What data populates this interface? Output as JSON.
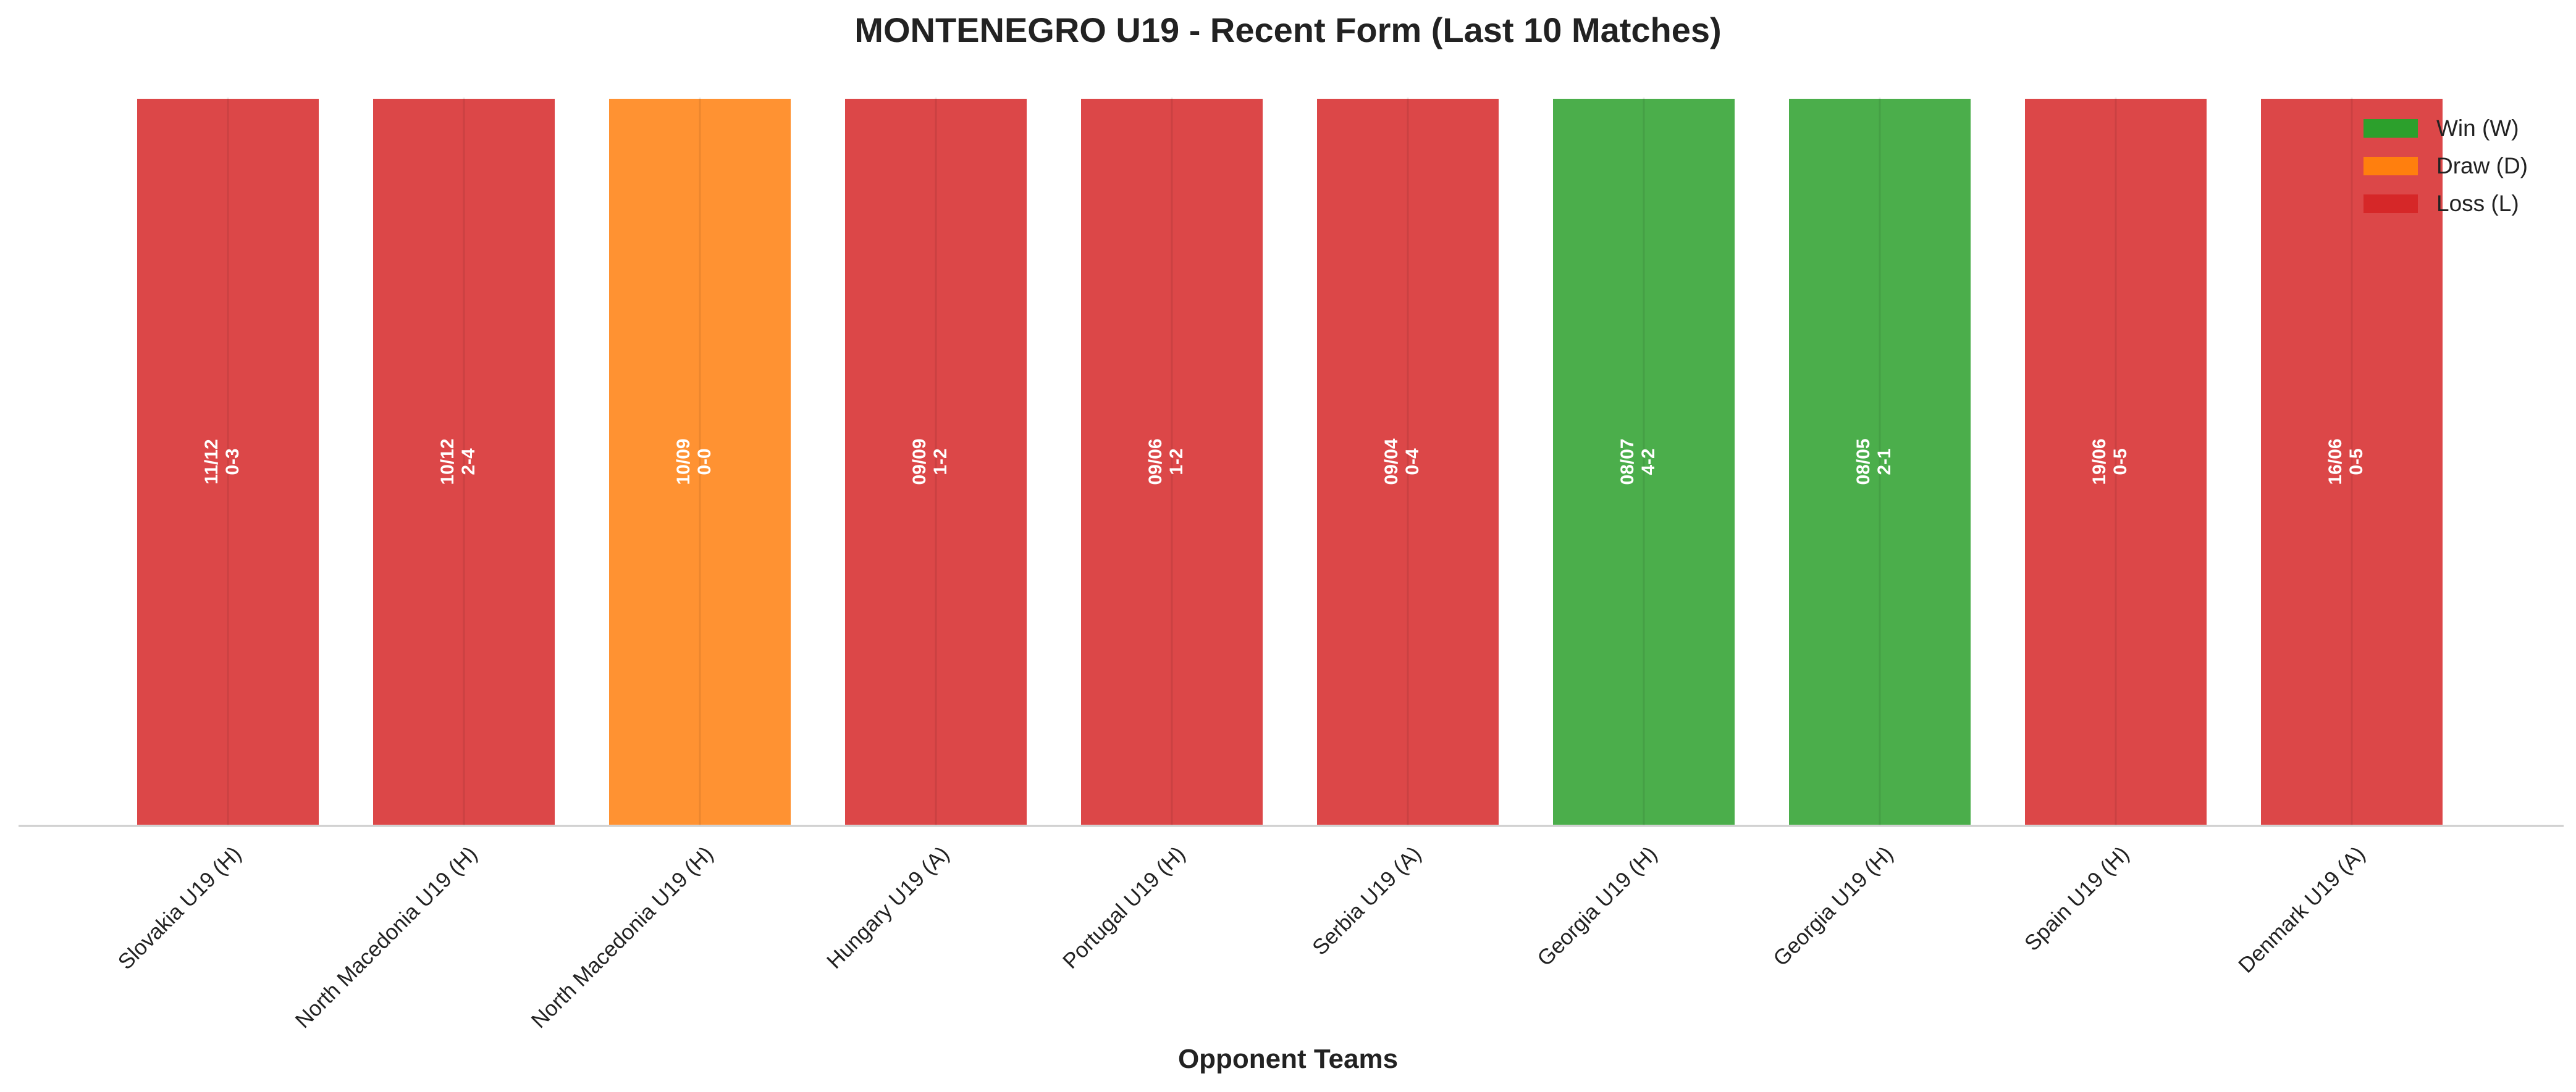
{
  "chart_data": {
    "type": "bar",
    "title": "MONTENEGRO U19 - Recent Form (Last 10 Matches)",
    "xlabel": "Opponent Teams",
    "ylabel": "",
    "categories": [
      "Slovakia U19 (H)",
      "North Macedonia U19 (H)",
      "North Macedonia U19 (H)",
      "Hungary U19 (A)",
      "Portugal U19 (H)",
      "Serbia U19 (A)",
      "Georgia U19 (H)",
      "Georgia U19 (H)",
      "Spain U19 (H)",
      "Denmark U19 (A)"
    ],
    "values": [
      1,
      1,
      1,
      1,
      1,
      1,
      1,
      1,
      1,
      1
    ],
    "results": [
      "L",
      "L",
      "D",
      "L",
      "L",
      "L",
      "W",
      "W",
      "L",
      "L"
    ],
    "dates": [
      "11/12",
      "10/12",
      "10/09",
      "09/09",
      "09/06",
      "09/04",
      "08/07",
      "08/05",
      "19/06",
      "16/06"
    ],
    "scores": [
      "0-3",
      "2-4",
      "0-0",
      "1-2",
      "1-2",
      "0-4",
      "4-2",
      "2-1",
      "0-5",
      "0-5"
    ],
    "ylim": [
      0,
      1
    ],
    "grid": false,
    "legend_position": "top-right",
    "legend": [
      {
        "key": "W",
        "label": "Win (W)",
        "color": "#2ca02c"
      },
      {
        "key": "D",
        "label": "Draw (D)",
        "color": "#ff7f0e"
      },
      {
        "key": "L",
        "label": "Loss (L)",
        "color": "#d62728"
      }
    ]
  }
}
